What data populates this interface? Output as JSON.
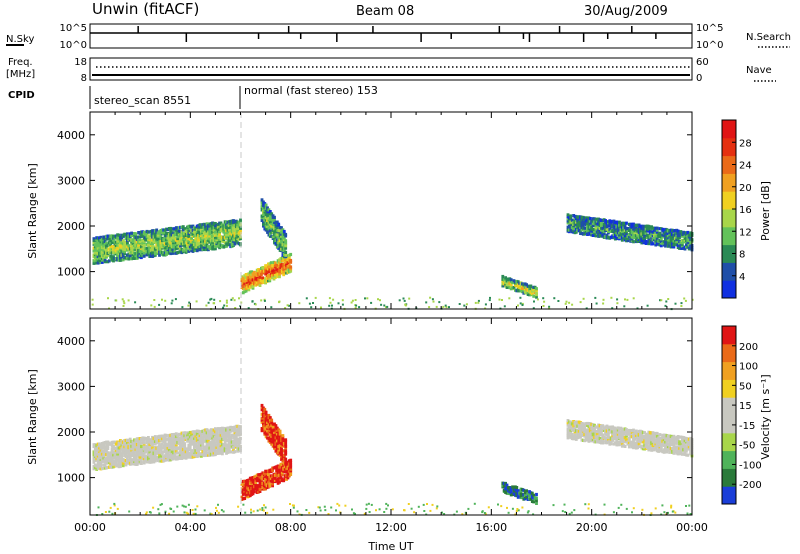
{
  "header": {
    "radar": "Unwin (fitACF)",
    "beam": "Beam 08",
    "date": "30/Aug/2009"
  },
  "strip_labels": {
    "nsky": "N.Sky",
    "nsky_ticks": [
      "10^5",
      "10^0"
    ],
    "nsearch": "N.Search",
    "nsearch_ticks": [
      "10^5",
      "10^0"
    ],
    "freq_title_1": "Freq.",
    "freq_title_2": "[MHz]",
    "freq_ticks": [
      "18",
      "8"
    ],
    "nave": "Nave",
    "nave_ticks": [
      "60",
      "0"
    ],
    "cpid": "CPID",
    "cpid_1": "stereo_scan 8551",
    "cpid_2": "normal (fast stereo) 153"
  },
  "chart_data": [
    {
      "type": "heatmap",
      "title": "",
      "ylabel": "Slant Range [km]",
      "xlabel": "",
      "ylim": [
        180,
        4500
      ],
      "yticks": [
        1000,
        2000,
        3000,
        4000
      ],
      "xlim": [
        0,
        24
      ],
      "colorbar": {
        "label": "Power [dB]",
        "ticks": [
          "4",
          "8",
          "12",
          "16",
          "20",
          "24",
          "28"
        ],
        "colors": [
          "#1030e0",
          "#1f4fa8",
          "#2a8a55",
          "#63c25a",
          "#a8d64a",
          "#f0d020",
          "#f0a020",
          "#ea6a18",
          "#e53010",
          "#e01515"
        ]
      },
      "echo_regions": [
        {
          "t0": 0.1,
          "t1": 6.0,
          "r_mid0": 1450,
          "r_mid1": 1850,
          "half_width": 260,
          "level": 0.45
        },
        {
          "t0": 6.0,
          "t1": 8.0,
          "r_mid0": 700,
          "r_mid1": 1200,
          "half_width": 180,
          "level": 0.85
        },
        {
          "t0": 6.8,
          "t1": 7.8,
          "r_mid0": 2300,
          "r_mid1": 1500,
          "half_width": 250,
          "level": 0.4
        },
        {
          "t0": 16.4,
          "t1": 17.8,
          "r_mid0": 780,
          "r_mid1": 520,
          "half_width": 80,
          "level": 0.5
        },
        {
          "t0": 19.0,
          "t1": 24.0,
          "r_mid0": 2050,
          "r_mid1": 1650,
          "half_width": 160,
          "level": 0.3
        }
      ]
    },
    {
      "type": "heatmap",
      "title": "",
      "ylabel": "Slant Range [km]",
      "xlabel": "Time UT",
      "ylim": [
        180,
        4500
      ],
      "yticks": [
        1000,
        2000,
        3000,
        4000
      ],
      "xlim": [
        0,
        24
      ],
      "xticks": [
        "00:00",
        "04:00",
        "08:00",
        "12:00",
        "16:00",
        "20:00",
        "00:00"
      ],
      "colorbar": {
        "label": "Velocity [m s⁻¹]",
        "ticks": [
          "200",
          "100",
          "50",
          "15",
          "-15",
          "-50",
          "-100",
          "-200"
        ],
        "colors": [
          "#1a3ed8",
          "#2a7a3a",
          "#4fb35a",
          "#a8d64a",
          "#c8c8c0",
          "#c8c8c0",
          "#f0d020",
          "#f0a020",
          "#ea6a18",
          "#e01515"
        ]
      },
      "echo_regions": [
        {
          "t0": 0.1,
          "t1": 6.0,
          "r_mid0": 1450,
          "r_mid1": 1850,
          "half_width": 260,
          "vel_class": "grey"
        },
        {
          "t0": 6.0,
          "t1": 8.0,
          "r_mid0": 700,
          "r_mid1": 1200,
          "half_width": 180,
          "vel_class": "red"
        },
        {
          "t0": 6.8,
          "t1": 7.8,
          "r_mid0": 2300,
          "r_mid1": 1500,
          "half_width": 250,
          "vel_class": "red"
        },
        {
          "t0": 16.4,
          "t1": 17.8,
          "r_mid0": 780,
          "r_mid1": 520,
          "half_width": 80,
          "vel_class": "green"
        },
        {
          "t0": 19.0,
          "t1": 24.0,
          "r_mid0": 2050,
          "r_mid1": 1650,
          "half_width": 160,
          "vel_class": "grey"
        }
      ]
    }
  ]
}
